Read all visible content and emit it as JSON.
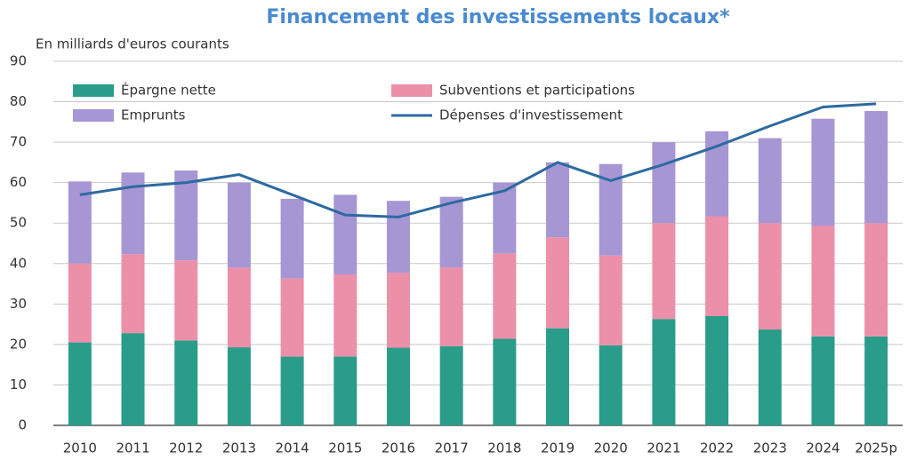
{
  "chart_data": {
    "type": "bar",
    "stacked": true,
    "title": "Financement des investissements locaux*",
    "y_label": "En milliards d'euros courants",
    "categories": [
      "2010",
      "2011",
      "2012",
      "2013",
      "2014",
      "2015",
      "2016",
      "2017",
      "2018",
      "2019",
      "2020",
      "2021",
      "2022",
      "2023",
      "2024",
      "2025p"
    ],
    "series": [
      {
        "name": "Épargne nette",
        "color": "#2a9d8a",
        "values": [
          20.5,
          22.8,
          21,
          19.3,
          17,
          17,
          19.2,
          19.6,
          21.4,
          24,
          19.8,
          26.3,
          27,
          23.7,
          22,
          22
        ]
      },
      {
        "name": "Subventions et participations",
        "color": "#ec8fa8",
        "values": [
          19.5,
          19.5,
          19.8,
          19.7,
          19.3,
          20.3,
          18.5,
          19.4,
          21.1,
          22.5,
          22.2,
          23.7,
          24.7,
          26.3,
          27.3,
          28
        ]
      },
      {
        "name": "Emprunts",
        "color": "#a796d4",
        "values": [
          20.3,
          20.2,
          22.2,
          21,
          19.7,
          19.7,
          17.8,
          17.5,
          17.5,
          18.5,
          22.6,
          20,
          21,
          21,
          26.5,
          27.7
        ]
      },
      {
        "name": "Dépenses d'investissement",
        "type": "line",
        "color": "#2d6aa0",
        "values": [
          57,
          59,
          60,
          62,
          57,
          52,
          51.5,
          55,
          58,
          65,
          60.5,
          64.5,
          69,
          74,
          78.7,
          79.5
        ]
      }
    ],
    "ylim": [
      0,
      90
    ],
    "yticks": [
      0,
      10,
      20,
      30,
      40,
      50,
      60,
      70,
      80,
      90
    ],
    "grid": true,
    "legend": "top-left"
  }
}
